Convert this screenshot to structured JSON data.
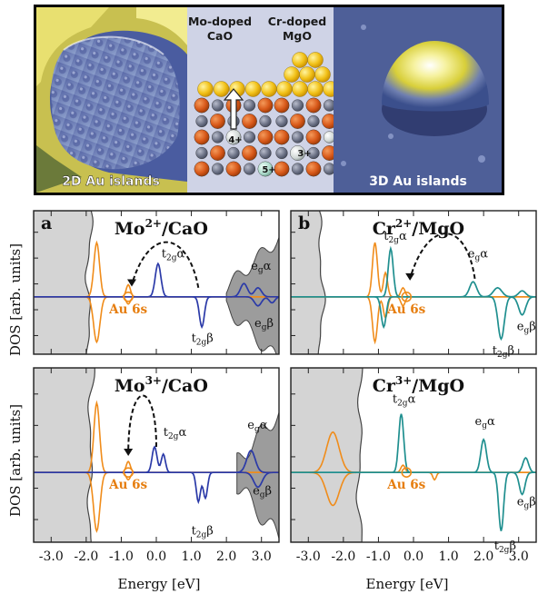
{
  "top": {
    "left_caption": "2D Au islands",
    "right_caption": "3D Au islands",
    "mo_title_line1": "Mo-doped",
    "mo_title_line2": "CaO",
    "cr_title_line1": "Cr-doped",
    "cr_title_line2": "MgO",
    "mo_ion": "4+",
    "mo_ion2": "5+",
    "cr_ion1": "3+",
    "cr_ion2": "3+"
  },
  "axes": {
    "ylabel": "DOS [arb. units]",
    "xlabel": "Energy [eV]",
    "xticks": [
      "-3.0",
      "-2.0",
      "-1.0",
      "0.0",
      "1.0",
      "2.0",
      "3.0"
    ],
    "xtick_values": [
      -3.0,
      -2.0,
      -1.0,
      0.0,
      1.0,
      2.0,
      3.0
    ],
    "xlim": [
      -3.5,
      3.5
    ]
  },
  "panels": {
    "a_letter": "a",
    "b_letter": "b",
    "p1_title_main": "Mo",
    "p1_title_sup": "2+",
    "p1_title_rest": "/CaO",
    "p2_title_main": "Cr",
    "p2_title_sup": "2+",
    "p2_title_rest": "/MgO",
    "p3_title_main": "Mo",
    "p3_title_sup": "3+",
    "p3_title_rest": "/CaO",
    "p4_title_main": "Cr",
    "p4_title_sup": "3+",
    "p4_title_rest": "/MgO",
    "au6s": "Au 6s",
    "t": "t",
    "e": "e",
    "sub_2g": "2g",
    "sub_g": "g",
    "alpha": "α",
    "beta": "β"
  },
  "chart_data": [
    {
      "type": "line",
      "panel": "Mo2+/CaO",
      "xlim": [
        -3.5,
        3.5
      ],
      "series": [
        {
          "name": "Au 6s",
          "x": [
            -1.7,
            -0.8
          ],
          "y": [
            1,
            0.2
          ]
        },
        {
          "name": "t2g α",
          "x": [
            0.0,
            0.2
          ],
          "y": [
            0.55,
            0.3
          ]
        },
        {
          "name": "t2g β",
          "x": [
            1.3
          ],
          "y": [
            -0.5
          ]
        },
        {
          "name": "eg α",
          "x": [
            2.5,
            2.9
          ],
          "y": [
            0.25,
            0.15
          ]
        },
        {
          "name": "eg β",
          "x": [
            2.9
          ],
          "y": [
            -0.15
          ]
        }
      ]
    },
    {
      "type": "line",
      "panel": "Cr2+/MgO",
      "xlim": [
        -3.5,
        3.5
      ],
      "series": [
        {
          "name": "Au 6s",
          "x": [
            -1.1,
            -0.3
          ],
          "y": [
            0.9,
            0.2
          ]
        },
        {
          "name": "t2g α",
          "x": [
            -0.6
          ],
          "y": [
            0.8
          ]
        },
        {
          "name": "t2g β",
          "x": [
            2.5
          ],
          "y": [
            -0.7
          ]
        },
        {
          "name": "eg α",
          "x": [
            1.7
          ],
          "y": [
            0.25
          ]
        },
        {
          "name": "eg β",
          "x": [
            3.1
          ],
          "y": [
            -0.3
          ]
        }
      ]
    },
    {
      "type": "line",
      "panel": "Mo3+/CaO",
      "xlim": [
        -3.5,
        3.5
      ],
      "series": [
        {
          "name": "Au 6s",
          "x": [
            -1.7,
            -0.8
          ],
          "y": [
            1,
            0.15
          ]
        },
        {
          "name": "t2g α",
          "x": [
            0.0,
            0.2
          ],
          "y": [
            0.35,
            0.25
          ]
        },
        {
          "name": "t2g β",
          "x": [
            1.3
          ],
          "y": [
            -0.45
          ]
        },
        {
          "name": "eg α",
          "x": [
            2.7
          ],
          "y": [
            0.3
          ]
        },
        {
          "name": "eg β",
          "x": [
            2.9
          ],
          "y": [
            -0.2
          ]
        }
      ]
    },
    {
      "type": "line",
      "panel": "Cr3+/MgO",
      "xlim": [
        -3.5,
        3.5
      ],
      "series": [
        {
          "name": "Au 6s",
          "x": [
            -2.3,
            -0.3
          ],
          "y": [
            0.8,
            0.1
          ]
        },
        {
          "name": "t2g α",
          "x": [
            -0.3
          ],
          "y": [
            0.8
          ]
        },
        {
          "name": "t2g β",
          "x": [
            2.5
          ],
          "y": [
            -0.8
          ]
        },
        {
          "name": "eg α",
          "x": [
            2.0
          ],
          "y": [
            0.45
          ]
        },
        {
          "name": "eg β",
          "x": [
            3.1
          ],
          "y": [
            -0.3
          ]
        }
      ]
    }
  ]
}
